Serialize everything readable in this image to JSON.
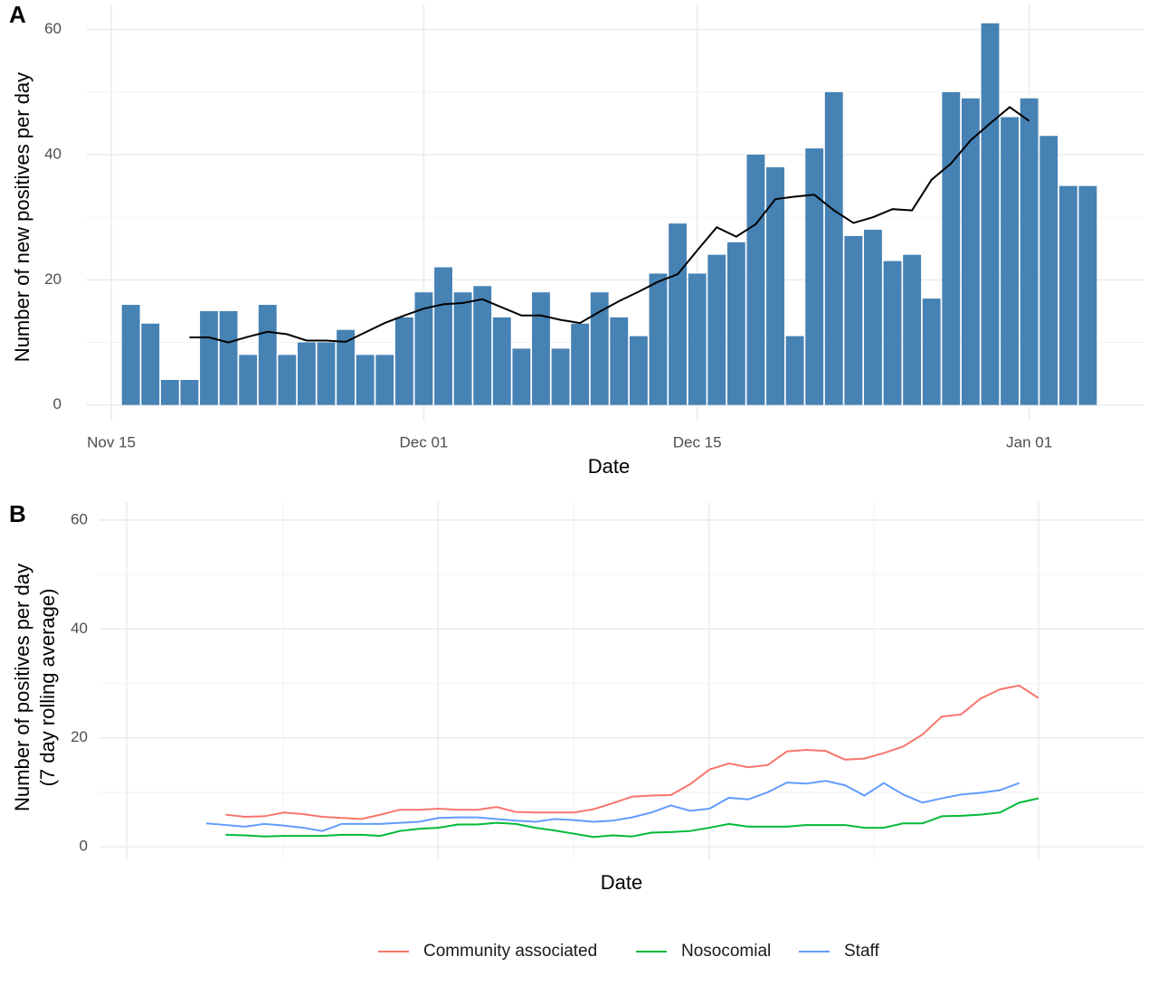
{
  "chart_data": [
    {
      "type": "bar",
      "tag": "A",
      "x_label": "Date",
      "y_label": "Number of new positives per day",
      "x": [
        "Nov 16",
        "Nov 17",
        "Nov 18",
        "Nov 19",
        "Nov 20",
        "Nov 21",
        "Nov 22",
        "Nov 23",
        "Nov 24",
        "Nov 25",
        "Nov 26",
        "Nov 27",
        "Nov 28",
        "Nov 29",
        "Nov 30",
        "Dec 01",
        "Dec 02",
        "Dec 03",
        "Dec 04",
        "Dec 05",
        "Dec 06",
        "Dec 07",
        "Dec 08",
        "Dec 09",
        "Dec 10",
        "Dec 11",
        "Dec 12",
        "Dec 13",
        "Dec 14",
        "Dec 15",
        "Dec 16",
        "Dec 17",
        "Dec 18",
        "Dec 19",
        "Dec 20",
        "Dec 21",
        "Dec 22",
        "Dec 23",
        "Dec 24",
        "Dec 25",
        "Dec 26",
        "Dec 27",
        "Dec 28",
        "Dec 29",
        "Dec 30",
        "Dec 31",
        "Jan 01",
        "Jan 02",
        "Jan 03",
        "Jan 04"
      ],
      "series": [
        {
          "type": "bar",
          "color": "#4682b4",
          "values": [
            16,
            13,
            4,
            4,
            15,
            15,
            8,
            16,
            8,
            10,
            10,
            12,
            8,
            8,
            14,
            18,
            22,
            18,
            19,
            14,
            9,
            18,
            9,
            13,
            18,
            14,
            11,
            21,
            29,
            21,
            24,
            26,
            40,
            38,
            11,
            41,
            50,
            27,
            28,
            23,
            24,
            17,
            50,
            49,
            61,
            46,
            49,
            43,
            35,
            35
          ]
        },
        {
          "type": "line",
          "color": "#000000",
          "values": [
            null,
            null,
            null,
            10.8,
            10.8,
            10,
            10.9,
            11.7,
            11.3,
            10.3,
            10.3,
            10.1,
            11.6,
            13.1,
            14.3,
            15.4,
            16.1,
            16.3,
            16.9,
            15.6,
            14.3,
            14.3,
            13.6,
            13.1,
            14.9,
            16.6,
            18.1,
            19.7,
            20.9,
            24.7,
            28.4,
            26.9,
            28.9,
            32.9,
            33.3,
            33.6,
            31.1,
            29.1,
            30,
            31.3,
            31.1,
            36,
            38.6,
            42.3,
            45,
            47.6,
            45.4,
            null,
            null,
            null
          ]
        }
      ],
      "xticks": [
        "Nov 15",
        "Dec 01",
        "Dec 15",
        "Jan 01"
      ],
      "ylim": [
        -2.5,
        64
      ],
      "yticks": [
        0,
        20,
        40,
        60
      ],
      "grid": true
    },
    {
      "type": "line",
      "tag": "B",
      "x_label": "Date",
      "y_label": [
        "Number of positives per day",
        "(7 day rolling average)"
      ],
      "categories": [
        null,
        null,
        null,
        null,
        null,
        null,
        null,
        null,
        null,
        null,
        null,
        null,
        null,
        null,
        null,
        null,
        null,
        null,
        null,
        null,
        null,
        null,
        null,
        null,
        null,
        null,
        null,
        null,
        null,
        null,
        null,
        null,
        null,
        null,
        null,
        null,
        null,
        null,
        null,
        null,
        null,
        null,
        null,
        null
      ],
      "series": [
        {
          "name": "Community associated",
          "color": "#f8766d",
          "values": [
            null,
            5.9,
            5.5,
            5.6,
            6.3,
            6.0,
            5.5,
            5.3,
            5.1,
            5.9,
            6.8,
            6.8,
            7.0,
            6.8,
            6.8,
            7.3,
            6.4,
            6.3,
            6.3,
            6.3,
            6.9,
            8.0,
            9.2,
            9.4,
            9.5,
            11.5,
            14.2,
            15.3,
            14.6,
            15.0,
            17.5,
            17.8,
            17.6,
            16.0,
            16.2,
            17.2,
            18.4,
            20.6,
            23.9,
            24.3,
            27.2,
            28.9,
            29.6,
            27.3
          ]
        },
        {
          "name": "Nosocomial",
          "color": "#00ba38",
          "values": [
            null,
            2.2,
            2.1,
            1.9,
            2.0,
            2.0,
            2.0,
            2.2,
            2.2,
            2.0,
            2.9,
            3.3,
            3.5,
            4.1,
            4.1,
            4.4,
            4.2,
            3.5,
            3.0,
            2.4,
            1.8,
            2.1,
            1.9,
            2.6,
            2.7,
            2.9,
            3.5,
            4.2,
            3.7,
            3.7,
            3.7,
            4.0,
            4.0,
            4.0,
            3.5,
            3.5,
            4.3,
            4.3,
            5.6,
            5.7,
            5.9,
            6.3,
            8.1,
            8.9
          ]
        },
        {
          "name": "Staff",
          "color": "#619cff",
          "values": [
            4.3,
            4.0,
            3.7,
            4.2,
            3.9,
            3.5,
            2.9,
            4.2,
            4.2,
            4.2,
            4.4,
            4.6,
            5.3,
            5.4,
            5.4,
            5.1,
            4.8,
            4.6,
            5.1,
            4.9,
            4.6,
            4.8,
            5.4,
            6.3,
            7.6,
            6.6,
            7.0,
            9.0,
            8.7,
            10.0,
            11.8,
            11.6,
            12.1,
            11.3,
            9.4,
            11.7,
            9.6,
            8.1,
            8.9,
            9.6,
            9.9,
            10.4,
            11.7,
            null
          ]
        }
      ],
      "ylim": [
        -2.3,
        63.3
      ],
      "yticks": [
        0,
        20,
        40,
        60
      ],
      "grid": true,
      "legend": "bottom"
    }
  ]
}
